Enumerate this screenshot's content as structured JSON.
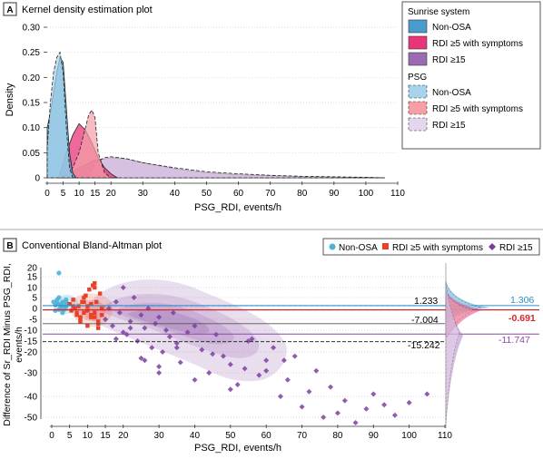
{
  "panelA": {
    "letter": "A",
    "title": "Kernel density estimation plot",
    "xlabel": "PSG_RDI, events/h",
    "ylabel": "Density",
    "xticks": [
      "0",
      "5",
      "10",
      "15",
      "20",
      "30",
      "40",
      "50",
      "60",
      "70",
      "80",
      "90",
      "100",
      "110"
    ],
    "yticks": [
      "0",
      "0.05",
      "0.10",
      "0.15",
      "0.20",
      "0.25",
      "0.30"
    ],
    "legend": {
      "group1_title": "Sunrise system",
      "group2_title": "PSG",
      "items1": [
        "Non-OSA",
        "RDI ≥5 with symptoms",
        "RDI ≥15"
      ],
      "items2": [
        "Non-OSA",
        "RDI ≥5 with symptoms",
        "RDI ≥15"
      ]
    }
  },
  "panelB": {
    "letter": "B",
    "title": "Conventional Bland-Altman plot",
    "xlabel": "PSG_RDI, events/h",
    "ylabel_line1": "Difference of Sr_RDI Minus PSG_RDI,",
    "ylabel_line2": "events/h",
    "xticks": [
      "0",
      "5",
      "10",
      "15",
      "20",
      "30",
      "40",
      "50",
      "60",
      "70",
      "80",
      "90",
      "100",
      "110"
    ],
    "yticks": [
      "20",
      "15",
      "10",
      "5",
      "0",
      "-5",
      "-10",
      "-15",
      "-20",
      "-30",
      "-40",
      "-50"
    ],
    "legend": [
      "Non-OSA",
      "RDI ≥5 with symptoms",
      "RDI ≥15"
    ],
    "line_labels": {
      "a": "1.233",
      "b": "-7.004",
      "c": "-15.242"
    },
    "mean_labels": {
      "non_osa": "1.306",
      "symptoms": "-0.691",
      "rdi15": "-11.747"
    }
  },
  "colors": {
    "non_osa": "#4a9ccf",
    "symptoms": "#e8357a",
    "rdi15": "#9b6bb3",
    "psg_non_osa": "#a9d3ea",
    "psg_symptoms": "#f4a0a6",
    "psg_rdi15": "#e6d5ee",
    "scatter_non_osa": "#4fb3d9",
    "scatter_symptoms": "#e8402a",
    "scatter_rdi15": "#7b3fa0",
    "mean_red": "#d9232d",
    "mean_purple": "#8a4aa6",
    "mean_blue": "#2a8fc4"
  },
  "chart_data": [
    {
      "type": "area",
      "title": "Kernel density estimation plot",
      "xlabel": "PSG_RDI, events/h",
      "ylabel": "Density",
      "xlim": [
        0,
        110
      ],
      "ylim": [
        0,
        0.3
      ],
      "series": [
        {
          "name": "Sunrise system Non-OSA",
          "x": [
            0,
            1,
            2,
            3,
            4,
            5,
            6,
            7,
            8,
            9
          ],
          "y": [
            0.1,
            0.13,
            0.17,
            0.21,
            0.24,
            0.23,
            0.14,
            0.05,
            0.01,
            0
          ]
        },
        {
          "name": "Sunrise system RDI ≥5 with symptoms",
          "x": [
            4,
            6,
            8,
            10,
            12,
            14,
            16,
            18,
            20,
            22
          ],
          "y": [
            0.01,
            0.05,
            0.085,
            0.108,
            0.095,
            0.07,
            0.04,
            0.02,
            0.008,
            0
          ]
        },
        {
          "name": "Sunrise system RDI ≥15",
          "x": [
            4,
            10,
            15,
            20,
            25,
            30,
            40,
            50,
            60,
            70,
            80,
            90,
            100,
            106
          ],
          "y": [
            0,
            0.02,
            0.035,
            0.04,
            0.037,
            0.03,
            0.018,
            0.01,
            0.006,
            0.004,
            0.002,
            0.001,
            0.0005,
            0
          ]
        },
        {
          "name": "PSG Non-OSA",
          "x": [
            0,
            1,
            2,
            3,
            4,
            5,
            6,
            7,
            8
          ],
          "y": [
            0.06,
            0.15,
            0.21,
            0.24,
            0.25,
            0.21,
            0.1,
            0.02,
            0
          ]
        },
        {
          "name": "PSG RDI ≥5 with symptoms",
          "x": [
            5,
            8,
            10,
            12,
            13,
            14,
            15,
            16,
            18,
            20
          ],
          "y": [
            0,
            0.02,
            0.05,
            0.1,
            0.125,
            0.135,
            0.12,
            0.05,
            0.01,
            0
          ]
        },
        {
          "name": "PSG RDI ≥15",
          "x": [
            13,
            15,
            18,
            20,
            25,
            30,
            40,
            50,
            60,
            70,
            80,
            90,
            100,
            106
          ],
          "y": [
            0,
            0.03,
            0.04,
            0.042,
            0.038,
            0.03,
            0.02,
            0.012,
            0.008,
            0.005,
            0.003,
            0.002,
            0.001,
            0
          ]
        }
      ]
    },
    {
      "type": "scatter",
      "title": "Conventional Bland-Altman plot",
      "xlabel": "PSG_RDI, events/h",
      "ylabel": "Difference of Sr_RDI Minus PSG_RDI, events/h",
      "xlim": [
        0,
        110
      ],
      "ylim": [
        -55,
        20
      ],
      "reference_lines": [
        1.233,
        -7.004,
        -15.242
      ],
      "group_means": {
        "Non-OSA": 1.306,
        "RDI ≥5 with symptoms": -0.691,
        "RDI ≥15": -11.747
      },
      "series": [
        {
          "name": "Non-OSA",
          "x": [
            0.5,
            1,
            1.5,
            2,
            2.5,
            3,
            3.5,
            4,
            4.5,
            1,
            2,
            3,
            4,
            2,
            1.5,
            3.5,
            2.5,
            4,
            2,
            3
          ],
          "y": [
            3,
            1.5,
            4,
            2,
            0,
            3,
            1,
            4,
            2,
            -1,
            17,
            -2,
            0.5,
            5,
            2.5,
            -0.5,
            1,
            3,
            -0.5,
            2
          ]
        },
        {
          "name": "RDI ≥5 with symptoms",
          "x": [
            5,
            5.5,
            6,
            6.5,
            7,
            7.5,
            8,
            8.5,
            9,
            9.5,
            10,
            10.5,
            11,
            11.5,
            12,
            12.5,
            13,
            13.5,
            14,
            6,
            7,
            8,
            9,
            10,
            11,
            12,
            13,
            14,
            10,
            11,
            12,
            13,
            8,
            9,
            12
          ],
          "y": [
            2,
            -1,
            4,
            0,
            -3,
            1,
            -5,
            3,
            -2,
            6,
            -1,
            9,
            -4,
            11,
            -2,
            3,
            -6,
            7,
            -3,
            1,
            -2,
            -6,
            5,
            -8,
            2,
            -4,
            -9,
            0,
            1,
            -3,
            12,
            -7,
            -4,
            3,
            10
          ]
        },
        {
          "name": "RDI ≥15",
          "x": [
            15,
            16,
            17,
            18,
            19,
            20,
            21,
            22,
            23,
            24,
            25,
            26,
            27,
            28,
            29,
            30,
            31,
            32,
            33,
            34,
            35,
            36,
            38,
            40,
            42,
            44,
            46,
            48,
            50,
            52,
            54,
            56,
            58,
            60,
            62,
            64,
            66,
            68,
            70,
            72,
            74,
            76,
            78,
            80,
            82,
            85,
            88,
            90,
            93,
            96,
            100,
            105,
            18,
            22,
            26,
            30,
            35,
            40,
            45,
            50,
            55,
            60,
            65,
            20,
            25,
            30
          ],
          "y": [
            -5,
            0,
            -8,
            3,
            -2,
            10,
            -12,
            -6,
            5,
            -15,
            -3,
            -9,
            0,
            -18,
            -7,
            -4,
            -20,
            -10,
            -13,
            -2,
            -16,
            -25,
            -11,
            -8,
            -19,
            -30,
            -12,
            -22,
            -26,
            -35,
            -28,
            -14,
            -31,
            -24,
            -18,
            -40,
            -33,
            -22,
            -45,
            -38,
            -29,
            -50,
            -36,
            -48,
            -42,
            -53,
            -46,
            -39,
            -44,
            -49,
            -43,
            -39,
            -14,
            -9,
            -24,
            -27,
            -18,
            -33,
            -21,
            -37,
            -15,
            -29,
            -24,
            -11,
            -23,
            -30
          ]
        }
      ]
    }
  ]
}
